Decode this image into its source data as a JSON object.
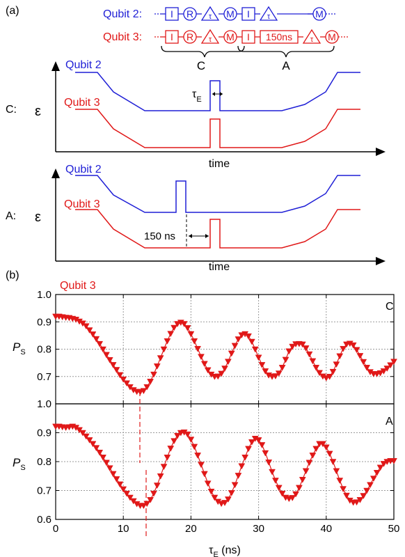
{
  "panel_a": {
    "label": "(a)",
    "seq_qubit2": {
      "label": "Qubit 2:",
      "gates": [
        "I",
        "R",
        "τ",
        "M",
        "I",
        "τ",
        "M"
      ],
      "color": "#1f1fd6"
    },
    "seq_qubit3": {
      "label": "Qubit 3:",
      "gates": [
        "I",
        "R",
        "τ",
        "M",
        "I",
        "150ns",
        "τ",
        "M"
      ],
      "color": "#e01818"
    },
    "brace_c": "C",
    "brace_a": "A",
    "row_c_label": "C:",
    "row_a_label": "A:",
    "epsilon": "ε",
    "time_label": "time",
    "q2": "Qubit 2",
    "q3": "Qubit 3",
    "tau_e": "τ",
    "tau_e_sub": "E",
    "delay_label": "150 ns"
  },
  "panel_b": {
    "label": "(b)",
    "qubit_label": "Qubit 3",
    "panel_c_tag": "C",
    "panel_a_tag": "A",
    "ylabel": "P",
    "ylabel_sub": "S",
    "xlabel": "τ",
    "xlabel_sub": "E",
    "xlabel_unit": " (ns)"
  },
  "colors": {
    "red": "#e01818",
    "blue": "#1f1fd6",
    "black": "#000000",
    "grid": "#999999"
  },
  "chart_data": [
    {
      "type": "line",
      "name": "C",
      "xlabel": "τE (ns)",
      "ylabel": "PS",
      "xlim": [
        0,
        50
      ],
      "ylim": [
        0.6,
        1.0
      ],
      "yticks": [
        "1.0",
        "0.9",
        "0.8",
        "0.7"
      ],
      "grid": true,
      "series": [
        {
          "x": [
            0,
            0.5,
            1,
            1.5,
            2,
            2.5,
            3,
            3.5,
            4,
            4.5,
            5,
            5.5,
            6,
            6.5,
            7,
            7.5,
            8,
            8.5,
            9,
            9.5,
            10,
            10.5,
            11,
            11.5,
            12,
            12.5,
            13,
            13.5,
            14,
            14.5,
            15,
            15.5,
            16,
            16.5,
            17,
            17.5,
            18,
            18.5,
            19,
            19.5,
            20,
            20.5,
            21,
            21.5,
            22,
            22.5,
            23,
            23.5,
            24,
            24.5,
            25,
            25.5,
            26,
            26.5,
            27,
            27.5,
            28,
            28.5,
            29,
            29.5,
            30,
            30.5,
            31,
            31.5,
            32,
            32.5,
            33,
            33.5,
            34,
            34.5,
            35,
            35.5,
            36,
            36.5,
            37,
            37.5,
            38,
            38.5,
            39,
            39.5,
            40,
            40.5,
            41,
            41.5,
            42,
            42.5,
            43,
            43.5,
            44,
            44.5,
            45,
            45.5,
            46,
            46.5,
            47,
            47.5,
            48,
            48.5,
            49,
            49.5,
            50
          ],
          "y": [
            0.92,
            0.92,
            0.918,
            0.916,
            0.915,
            0.912,
            0.909,
            0.902,
            0.895,
            0.885,
            0.87,
            0.855,
            0.838,
            0.82,
            0.8,
            0.78,
            0.761,
            0.743,
            0.725,
            0.706,
            0.69,
            0.676,
            0.662,
            0.651,
            0.645,
            0.644,
            0.648,
            0.662,
            0.682,
            0.708,
            0.738,
            0.768,
            0.8,
            0.83,
            0.857,
            0.879,
            0.893,
            0.898,
            0.893,
            0.878,
            0.856,
            0.83,
            0.802,
            0.773,
            0.747,
            0.724,
            0.708,
            0.7,
            0.701,
            0.711,
            0.73,
            0.755,
            0.785,
            0.813,
            0.837,
            0.852,
            0.856,
            0.848,
            0.828,
            0.8,
            0.77,
            0.743,
            0.72,
            0.705,
            0.7,
            0.702,
            0.712,
            0.733,
            0.762,
            0.793,
            0.81,
            0.819,
            0.82,
            0.818,
            0.804,
            0.782,
            0.757,
            0.733,
            0.714,
            0.701,
            0.695,
            0.7,
            0.718,
            0.745,
            0.775,
            0.802,
            0.818,
            0.821,
            0.815,
            0.798,
            0.776,
            0.754,
            0.733,
            0.717,
            0.71,
            0.71,
            0.713,
            0.72,
            0.73,
            0.742,
            0.755
          ]
        }
      ]
    },
    {
      "type": "line",
      "name": "A",
      "xlabel": "τE (ns)",
      "ylabel": "PS",
      "xlim": [
        0,
        50
      ],
      "ylim": [
        0.6,
        1.0
      ],
      "xticks": [
        "0",
        "10",
        "20",
        "30",
        "40",
        "50"
      ],
      "yticks": [
        "1.0",
        "0.9",
        "0.8",
        "0.7",
        "0.6"
      ],
      "grid": true,
      "series": [
        {
          "x": [
            0,
            0.5,
            1,
            1.5,
            2,
            2.5,
            3,
            3.5,
            4,
            4.5,
            5,
            5.5,
            6,
            6.5,
            7,
            7.5,
            8,
            8.5,
            9,
            9.5,
            10,
            10.5,
            11,
            11.5,
            12,
            12.5,
            13,
            13.5,
            14,
            14.5,
            15,
            15.5,
            16,
            16.5,
            17,
            17.5,
            18,
            18.5,
            19,
            19.5,
            20,
            20.5,
            21,
            21.5,
            22,
            22.5,
            23,
            23.5,
            24,
            24.5,
            25,
            25.5,
            26,
            26.5,
            27,
            27.5,
            28,
            28.5,
            29,
            29.5,
            30,
            30.5,
            31,
            31.5,
            32,
            32.5,
            33,
            33.5,
            34,
            34.5,
            35,
            35.5,
            36,
            36.5,
            37,
            37.5,
            38,
            38.5,
            39,
            39.5,
            40,
            40.5,
            41,
            41.5,
            42,
            42.5,
            43,
            43.5,
            44,
            44.5,
            45,
            45.5,
            46,
            46.5,
            47,
            47.5,
            48,
            48.5,
            49,
            49.5,
            50
          ],
          "y": [
            0.922,
            0.922,
            0.92,
            0.918,
            0.92,
            0.922,
            0.918,
            0.91,
            0.9,
            0.888,
            0.875,
            0.862,
            0.848,
            0.832,
            0.815,
            0.797,
            0.778,
            0.758,
            0.74,
            0.722,
            0.705,
            0.69,
            0.676,
            0.664,
            0.654,
            0.648,
            0.648,
            0.655,
            0.668,
            0.69,
            0.718,
            0.75,
            0.783,
            0.815,
            0.846,
            0.872,
            0.89,
            0.9,
            0.902,
            0.895,
            0.877,
            0.852,
            0.822,
            0.79,
            0.758,
            0.725,
            0.697,
            0.676,
            0.662,
            0.655,
            0.658,
            0.67,
            0.692,
            0.72,
            0.752,
            0.785,
            0.815,
            0.845,
            0.868,
            0.88,
            0.875,
            0.858,
            0.83,
            0.798,
            0.765,
            0.735,
            0.71,
            0.69,
            0.676,
            0.672,
            0.675,
            0.688,
            0.71,
            0.738,
            0.768,
            0.797,
            0.822,
            0.845,
            0.862,
            0.862,
            0.85,
            0.828,
            0.8,
            0.768,
            0.735,
            0.706,
            0.683,
            0.666,
            0.659,
            0.66,
            0.668,
            0.682,
            0.7,
            0.72,
            0.742,
            0.762,
            0.78,
            0.793,
            0.8,
            0.803,
            0.803
          ]
        }
      ]
    }
  ]
}
